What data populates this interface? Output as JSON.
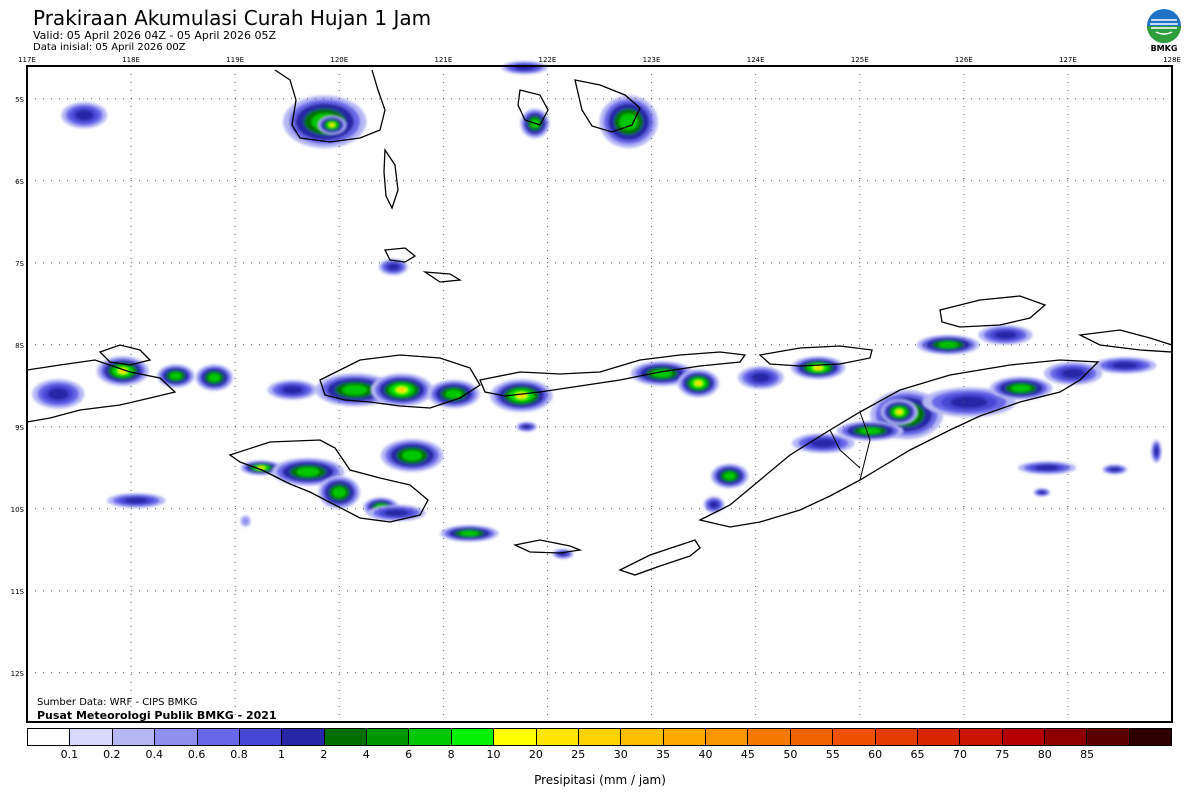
{
  "header": {
    "title": "Prakiraan Akumulasi Curah Hujan 1 Jam",
    "valid": "Valid: 05 April 2026 04Z - 05 April 2026 05Z",
    "init": "Data inisial: 05 April 2026 00Z",
    "logo_text": "BMKG"
  },
  "map": {
    "lon_labels": [
      "117E",
      "118E",
      "119E",
      "120E",
      "121E",
      "122E",
      "123E",
      "124E",
      "125E",
      "126E",
      "127E",
      "128E"
    ],
    "lat_labels": [
      "5S",
      "6S",
      "7S",
      "8S",
      "9S",
      "10S",
      "11S",
      "12S"
    ],
    "lon_range": [
      117,
      128
    ],
    "lat_range": [
      -4.6,
      -12.6
    ],
    "rain_cells": [
      {
        "lon": 119.86,
        "lat": -5.28,
        "rx": 0.4,
        "ry": 0.32,
        "level": 3
      },
      {
        "lon": 119.93,
        "lat": -5.32,
        "rx": 0.14,
        "ry": 0.12,
        "level": 4
      },
      {
        "lon": 117.55,
        "lat": -5.2,
        "rx": 0.22,
        "ry": 0.16,
        "level": 2
      },
      {
        "lon": 121.88,
        "lat": -5.3,
        "rx": 0.14,
        "ry": 0.18,
        "level": 3
      },
      {
        "lon": 122.78,
        "lat": -5.28,
        "rx": 0.28,
        "ry": 0.32,
        "level": 3
      },
      {
        "lon": 121.78,
        "lat": -4.62,
        "rx": 0.22,
        "ry": 0.08,
        "level": 2
      },
      {
        "lon": 120.52,
        "lat": -7.05,
        "rx": 0.14,
        "ry": 0.1,
        "level": 2
      },
      {
        "lon": 125.85,
        "lat": -8.0,
        "rx": 0.3,
        "ry": 0.12,
        "level": 3
      },
      {
        "lon": 126.4,
        "lat": -7.88,
        "rx": 0.26,
        "ry": 0.12,
        "level": 2
      },
      {
        "lon": 127.55,
        "lat": -8.25,
        "rx": 0.3,
        "ry": 0.1,
        "level": 2
      },
      {
        "lon": 117.3,
        "lat": -8.6,
        "rx": 0.25,
        "ry": 0.18,
        "level": 2
      },
      {
        "lon": 117.92,
        "lat": -8.32,
        "rx": 0.25,
        "ry": 0.18,
        "level": 4
      },
      {
        "lon": 118.43,
        "lat": -8.38,
        "rx": 0.18,
        "ry": 0.14,
        "level": 3
      },
      {
        "lon": 118.8,
        "lat": -8.4,
        "rx": 0.18,
        "ry": 0.16,
        "level": 3
      },
      {
        "lon": 119.55,
        "lat": -8.55,
        "rx": 0.24,
        "ry": 0.12,
        "level": 2
      },
      {
        "lon": 120.15,
        "lat": -8.55,
        "rx": 0.38,
        "ry": 0.2,
        "level": 3
      },
      {
        "lon": 120.6,
        "lat": -8.55,
        "rx": 0.3,
        "ry": 0.2,
        "level": 4
      },
      {
        "lon": 121.1,
        "lat": -8.6,
        "rx": 0.25,
        "ry": 0.17,
        "level": 3
      },
      {
        "lon": 121.75,
        "lat": -8.62,
        "rx": 0.3,
        "ry": 0.2,
        "level": 4
      },
      {
        "lon": 123.1,
        "lat": -8.35,
        "rx": 0.3,
        "ry": 0.15,
        "level": 3
      },
      {
        "lon": 123.45,
        "lat": -8.47,
        "rx": 0.2,
        "ry": 0.17,
        "level": 4
      },
      {
        "lon": 124.05,
        "lat": -8.4,
        "rx": 0.22,
        "ry": 0.14,
        "level": 2
      },
      {
        "lon": 124.6,
        "lat": -8.28,
        "rx": 0.26,
        "ry": 0.14,
        "level": 4
      },
      {
        "lon": 125.45,
        "lat": -8.85,
        "rx": 0.35,
        "ry": 0.3,
        "level": 3
      },
      {
        "lon": 125.38,
        "lat": -8.82,
        "rx": 0.18,
        "ry": 0.16,
        "level": 4
      },
      {
        "lon": 126.05,
        "lat": -8.7,
        "rx": 0.45,
        "ry": 0.18,
        "level": 2
      },
      {
        "lon": 126.55,
        "lat": -8.53,
        "rx": 0.3,
        "ry": 0.14,
        "level": 3
      },
      {
        "lon": 127.05,
        "lat": -8.35,
        "rx": 0.28,
        "ry": 0.14,
        "level": 2
      },
      {
        "lon": 124.65,
        "lat": -9.2,
        "rx": 0.3,
        "ry": 0.12,
        "level": 2
      },
      {
        "lon": 125.1,
        "lat": -9.05,
        "rx": 0.32,
        "ry": 0.12,
        "level": 3
      },
      {
        "lon": 123.75,
        "lat": -9.6,
        "rx": 0.18,
        "ry": 0.15,
        "level": 3
      },
      {
        "lon": 123.6,
        "lat": -9.95,
        "rx": 0.1,
        "ry": 0.1,
        "level": 2
      },
      {
        "lon": 119.25,
        "lat": -9.5,
        "rx": 0.2,
        "ry": 0.09,
        "level": 4
      },
      {
        "lon": 119.7,
        "lat": -9.55,
        "rx": 0.35,
        "ry": 0.17,
        "level": 3
      },
      {
        "lon": 120.0,
        "lat": -9.8,
        "rx": 0.2,
        "ry": 0.2,
        "level": 3
      },
      {
        "lon": 120.4,
        "lat": -9.98,
        "rx": 0.17,
        "ry": 0.12,
        "level": 3
      },
      {
        "lon": 120.7,
        "lat": -9.35,
        "rx": 0.3,
        "ry": 0.2,
        "level": 3
      },
      {
        "lon": 120.55,
        "lat": -10.05,
        "rx": 0.28,
        "ry": 0.1,
        "level": 2
      },
      {
        "lon": 121.25,
        "lat": -10.3,
        "rx": 0.28,
        "ry": 0.1,
        "level": 3
      },
      {
        "lon": 118.05,
        "lat": -9.9,
        "rx": 0.28,
        "ry": 0.09,
        "level": 2
      },
      {
        "lon": 119.1,
        "lat": -10.15,
        "rx": 0.05,
        "ry": 0.07,
        "level": 1
      },
      {
        "lon": 122.15,
        "lat": -10.55,
        "rx": 0.1,
        "ry": 0.06,
        "level": 2
      },
      {
        "lon": 121.8,
        "lat": -9.0,
        "rx": 0.1,
        "ry": 0.06,
        "level": 2
      },
      {
        "lon": 126.8,
        "lat": -9.5,
        "rx": 0.28,
        "ry": 0.08,
        "level": 2
      },
      {
        "lon": 127.45,
        "lat": -9.52,
        "rx": 0.12,
        "ry": 0.06,
        "level": 2
      },
      {
        "lon": 127.85,
        "lat": -9.3,
        "rx": 0.05,
        "ry": 0.14,
        "level": 2
      },
      {
        "lon": 126.75,
        "lat": -9.8,
        "rx": 0.08,
        "ry": 0.05,
        "level": 2
      }
    ]
  },
  "colorbar": {
    "colors": [
      "#ffffff",
      "#d6d9fb",
      "#b6b8f4",
      "#8f8ff0",
      "#6767e8",
      "#4747d6",
      "#2626a6",
      "#006e00",
      "#009600",
      "#00c800",
      "#00f000",
      "#ffff00",
      "#ffe600",
      "#ffd200",
      "#ffbe00",
      "#fcaa00",
      "#f89600",
      "#f67a00",
      "#f06400",
      "#ec5000",
      "#e43c00",
      "#d82600",
      "#c81400",
      "#b40000",
      "#8c0000",
      "#5a0000",
      "#2d0000"
    ],
    "labels": [
      "0.1",
      "0.2",
      "0.4",
      "0.6",
      "0.8",
      "1",
      "2",
      "4",
      "6",
      "8",
      "10",
      "20",
      "25",
      "30",
      "35",
      "40",
      "45",
      "50",
      "55",
      "60",
      "65",
      "70",
      "75",
      "80",
      "85"
    ],
    "unit_label": "Presipitasi (mm / jam)"
  },
  "credits": {
    "source": "Sumber Data: WRF - CIPS BMKG",
    "org": "Pusat Meteorologi Publik BMKG - 2021"
  }
}
